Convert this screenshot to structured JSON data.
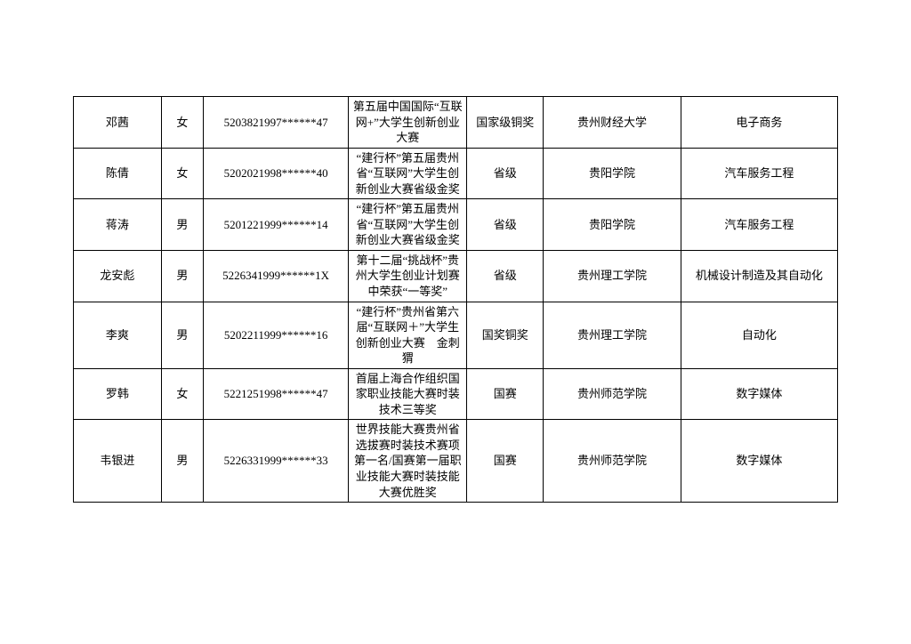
{
  "table": {
    "border_color": "#000000",
    "background_color": "#ffffff",
    "font_size": 13,
    "rows": [
      {
        "name": "邓茜",
        "gender": "女",
        "id": "5203821997******47",
        "event": "第五届中国国际“互联网+”大学生创新创业大赛",
        "level": "国家级铜奖",
        "school": "贵州财经大学",
        "major": "电子商务"
      },
      {
        "name": "陈倩",
        "gender": "女",
        "id": "5202021998******40",
        "event": "“建行杯”第五届贵州省“互联网”大学生创新创业大赛省级金奖",
        "level": "省级",
        "school": "贵阳学院",
        "major": "汽车服务工程"
      },
      {
        "name": "蒋涛",
        "gender": "男",
        "id": "5201221999******14",
        "event": "“建行杯”第五届贵州省“互联网”大学生创新创业大赛省级金奖",
        "level": "省级",
        "school": "贵阳学院",
        "major": "汽车服务工程"
      },
      {
        "name": "龙安彪",
        "gender": "男",
        "id": "5226341999******1X",
        "event": "第十二届“挑战杯”贵州大学生创业计划赛中荣获“一等奖”",
        "level": "省级",
        "school": "贵州理工学院",
        "major": "机械设计制造及其自动化"
      },
      {
        "name": "李爽",
        "gender": "男",
        "id": "5202211999******16",
        "event": "“建行杯”贵州省第六届“互联网＋”大学生创新创业大赛　金刺猬",
        "level": "国奖铜奖",
        "school": "贵州理工学院",
        "major": "自动化"
      },
      {
        "name": "罗韩",
        "gender": "女",
        "id": "5221251998******47",
        "event": "首届上海合作组织国家职业技能大赛时装技术三等奖",
        "level": "国赛",
        "school": "贵州师范学院",
        "major": "数字媒体"
      },
      {
        "name": "韦银进",
        "gender": "男",
        "id": "5226331999******33",
        "event": "世界技能大赛贵州省选拔赛时装技术赛项第一名/国赛第一届职业技能大赛时装技能大赛优胜奖",
        "level": "国赛",
        "school": "贵州师范学院",
        "major": "数字媒体"
      }
    ]
  }
}
